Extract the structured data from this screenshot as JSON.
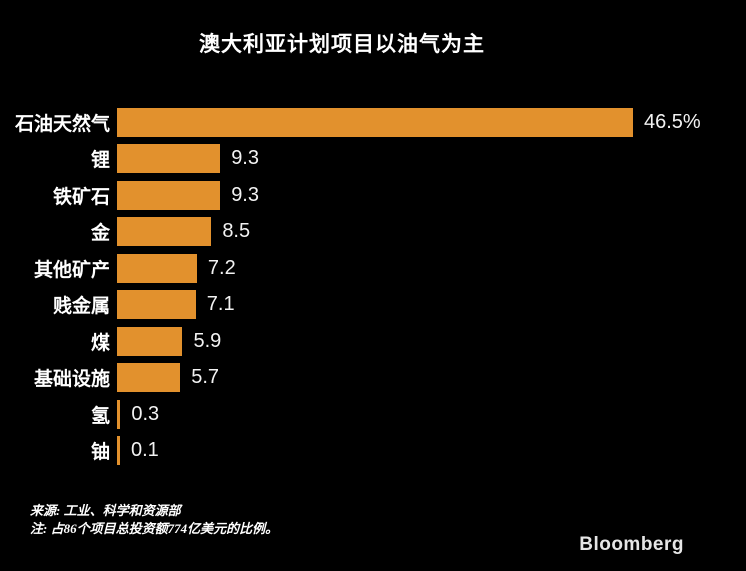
{
  "title": "澳大利亚计划项目以油气为主",
  "chart_data": {
    "type": "bar",
    "orientation": "horizontal",
    "title": "澳大利亚计划项目以油气为主",
    "categories": [
      "石油天然气",
      "锂",
      "铁矿石",
      "金",
      "其他矿产",
      "贱金属",
      "煤",
      "基础设施",
      "氢",
      "铀"
    ],
    "values": [
      46.5,
      9.3,
      9.3,
      8.5,
      7.2,
      7.1,
      5.9,
      5.7,
      0.3,
      0.1
    ],
    "value_labels": [
      "46.5%",
      "9.3",
      "9.3",
      "8.5",
      "7.2",
      "7.1",
      "5.9",
      "5.7",
      "0.3",
      "0.1"
    ],
    "unit": "%",
    "xlim": [
      0,
      50
    ],
    "grid": false,
    "legend": false,
    "bar_color": "#E2912D"
  },
  "footer": {
    "source": "来源: 工业、科学和资源部",
    "note": "注: 占86个项目总投资额774亿美元的比例。"
  },
  "branding": {
    "logo": "Bloomberg"
  },
  "colors": {
    "background": "#000000",
    "bar": "#E2912D",
    "text": "#FFFFFF",
    "value_text": "#F2F2F2",
    "logo_text": "#E6E6E6"
  }
}
